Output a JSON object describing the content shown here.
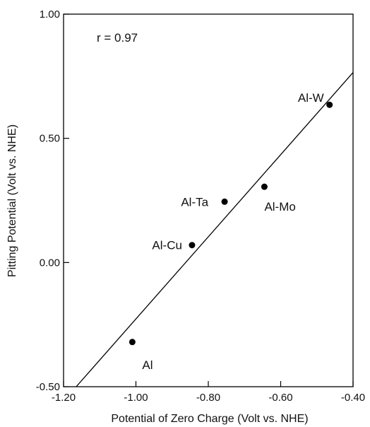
{
  "chart_data": {
    "type": "scatter",
    "title": "",
    "xlabel": "Potential  of Zero Charge (Volt vs. NHE)",
    "ylabel": "Pitting Potential (Volt vs. NHE)",
    "xlim": [
      -1.2,
      -0.4
    ],
    "ylim": [
      -0.5,
      1.0
    ],
    "xticks": [
      "-1.20",
      "-1.00",
      "-0.80",
      "-0.60",
      "-0.40"
    ],
    "yticks": [
      "-0.50",
      "0.00",
      "0.50",
      "1.00"
    ],
    "xtick_values": [
      -1.2,
      -1.0,
      -0.8,
      -0.6,
      -0.4
    ],
    "ytick_values": [
      -0.5,
      0.0,
      0.5,
      1.0
    ],
    "grid": false,
    "legend": "none",
    "annotation": "r = 0.97",
    "points": [
      {
        "label": "Al",
        "x": -1.01,
        "y": -0.32
      },
      {
        "label": "Al-Cu",
        "x": -0.845,
        "y": 0.07
      },
      {
        "label": "Al-Ta",
        "x": -0.755,
        "y": 0.245
      },
      {
        "label": "Al-Mo",
        "x": -0.645,
        "y": 0.305
      },
      {
        "label": "Al-W",
        "x": -0.465,
        "y": 0.635
      }
    ],
    "fit_line": {
      "x": [
        -1.165,
        -0.4
      ],
      "y": [
        -0.5,
        0.765
      ]
    },
    "colors": {
      "points": "#000000",
      "line": "#000000",
      "axes": "#000000"
    }
  }
}
